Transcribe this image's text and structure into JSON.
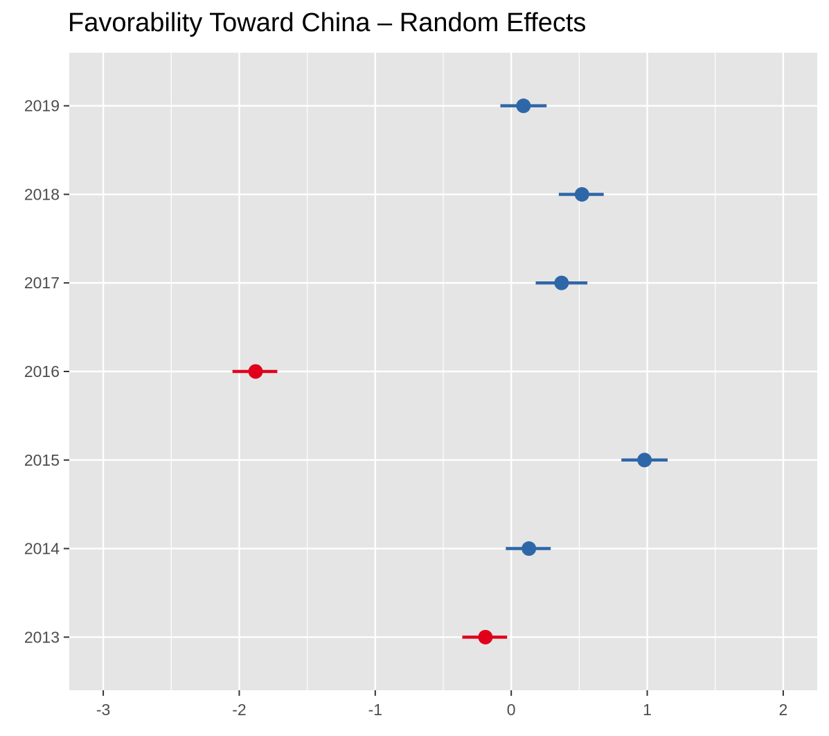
{
  "chart_data": {
    "type": "scatter",
    "title": "Favorability Toward China – Random Effects",
    "xlabel": "",
    "ylabel": "",
    "xlim": [
      -3.25,
      2.25
    ],
    "x_ticks": [
      -3,
      -2,
      -1,
      0,
      1,
      2
    ],
    "x_tick_labels": [
      "-3",
      "-2",
      "-1",
      "0",
      "1",
      "2"
    ],
    "categories": [
      "2019",
      "2018",
      "2017",
      "2016",
      "2015",
      "2014",
      "2013"
    ],
    "series": [
      {
        "values": [
          {
            "category": "2019",
            "estimate": 0.09,
            "lower": -0.08,
            "upper": 0.26,
            "color": "#2e67a8"
          },
          {
            "category": "2018",
            "estimate": 0.52,
            "lower": 0.35,
            "upper": 0.68,
            "color": "#2e67a8"
          },
          {
            "category": "2017",
            "estimate": 0.37,
            "lower": 0.18,
            "upper": 0.56,
            "color": "#2e67a8"
          },
          {
            "category": "2016",
            "estimate": -1.88,
            "lower": -2.05,
            "upper": -1.72,
            "color": "#e0001b"
          },
          {
            "category": "2015",
            "estimate": 0.98,
            "lower": 0.81,
            "upper": 1.15,
            "color": "#2e67a8"
          },
          {
            "category": "2014",
            "estimate": 0.13,
            "lower": -0.04,
            "upper": 0.29,
            "color": "#2e67a8"
          },
          {
            "category": "2013",
            "estimate": -0.19,
            "lower": -0.36,
            "upper": -0.03,
            "color": "#e0001b"
          }
        ]
      }
    ],
    "grid": true,
    "legend": "none",
    "colors": {
      "panel_background": "#e5e5e5",
      "grid": "#ffffff",
      "positive": "#2e67a8",
      "negative": "#e0001b",
      "tick_text": "#4d4d4d"
    }
  }
}
